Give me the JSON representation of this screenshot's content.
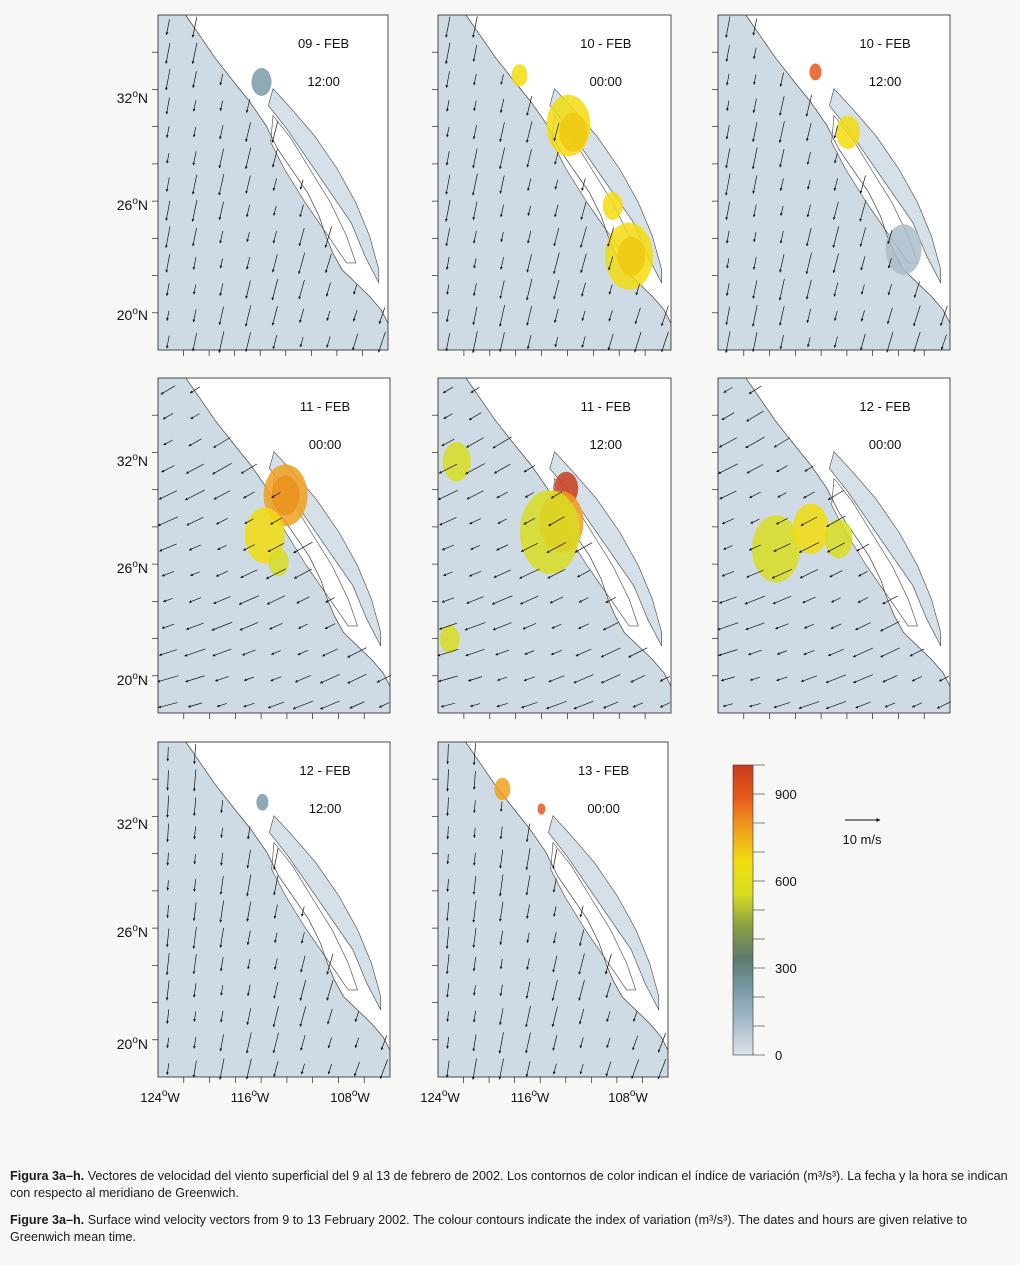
{
  "panels": [
    {
      "date": "09 - FEB",
      "time": "12:00",
      "phase": 0
    },
    {
      "date": "10 - FEB",
      "time": "00:00",
      "phase": 1
    },
    {
      "date": "10 - FEB",
      "time": "12:00",
      "phase": 2
    },
    {
      "date": "11 - FEB",
      "time": "00:00",
      "phase": 3
    },
    {
      "date": "11 - FEB",
      "time": "12:00",
      "phase": 4
    },
    {
      "date": "12 - FEB",
      "time": "00:00",
      "phase": 5
    },
    {
      "date": "12 - FEB",
      "time": "12:00",
      "phase": 6
    },
    {
      "date": "13 - FEB",
      "time": "00:00",
      "phase": 7
    }
  ],
  "lat_labels": [
    "32",
    "26",
    "20"
  ],
  "lat_suffix": "N",
  "lon_labels": [
    "124",
    "116",
    "108"
  ],
  "lon_suffix": "W",
  "degree": "o",
  "colorbar": {
    "ticks": [
      "900",
      "600",
      "300",
      "0"
    ],
    "tick_values": [
      900,
      600,
      300,
      0
    ],
    "max": 1000,
    "colors": [
      "#dde4ea",
      "#a9bccb",
      "#7c9aa8",
      "#5e7b6e",
      "#8aa044",
      "#d8dc22",
      "#f2dc10",
      "#f0a01e",
      "#e8581c",
      "#c83c1c"
    ]
  },
  "reference_vector": {
    "label": "10 m/s"
  },
  "caption_es": {
    "label": "Figura 3a–h.",
    "text": "Vectores de velocidad del viento superficial del 9 al 13 de febrero de 2002. Los contornos de color indican el índice de variación (m³/s³). La fecha y la hora se indican con respecto al meridiano de Greenwich."
  },
  "caption_en": {
    "label": "Figure 3a–h.",
    "text": "Surface wind velocity vectors from 9 to 13 February 2002. The colour contours indicate the index of variation (m³/s³). The dates and hours are given relative to Greenwich mean time."
  }
}
